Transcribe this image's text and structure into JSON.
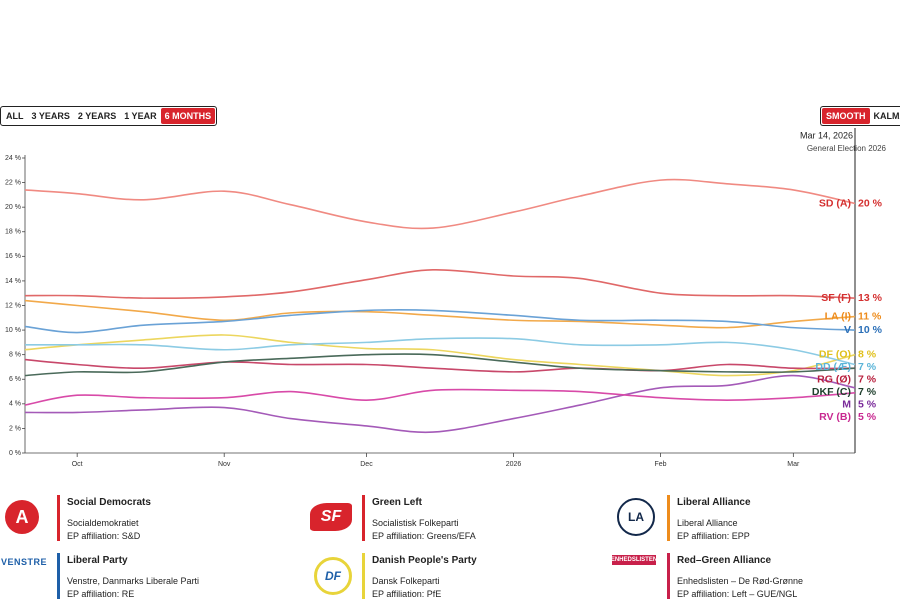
{
  "chart_data": {
    "type": "line",
    "range_buttons": [
      "ALL",
      "3 YEARS",
      "2 YEARS",
      "1 YEAR",
      "6 MONTHS"
    ],
    "active_range": 4,
    "mode_buttons": [
      "SMOOTH",
      "KALMA"
    ],
    "active_mode": 0,
    "marker_date": "Mar 14, 2026",
    "marker_label": "General Election 2026",
    "x": [
      "2025-09-20",
      "2025-10-01",
      "2025-10-15",
      "2025-11-01",
      "2025-11-15",
      "2025-12-01",
      "2025-12-15",
      "2026-01-01",
      "2026-01-15",
      "2026-02-01",
      "2026-02-15",
      "2026-03-01",
      "2026-03-14"
    ],
    "xlim": [
      "2025-09-20",
      "2026-03-14"
    ],
    "xticks": [
      {
        "value": "2025-10-01",
        "label": "Oct"
      },
      {
        "value": "2025-11-01",
        "label": "Nov"
      },
      {
        "value": "2025-12-01",
        "label": "Dec"
      },
      {
        "value": "2026-01-01",
        "label": "2026"
      },
      {
        "value": "2026-02-01",
        "label": "Feb"
      },
      {
        "value": "2026-03-01",
        "label": "Mar"
      }
    ],
    "ylim": [
      0,
      24
    ],
    "yticks": [
      {
        "value": 0,
        "label": "0 %"
      },
      {
        "value": 2,
        "label": "2 %"
      },
      {
        "value": 4,
        "label": "4 %"
      },
      {
        "value": 6,
        "label": "6 %"
      },
      {
        "value": 8,
        "label": "8 %"
      },
      {
        "value": 10,
        "label": "10 %"
      },
      {
        "value": 12,
        "label": "12 %"
      },
      {
        "value": 14,
        "label": "14 %"
      },
      {
        "value": 16,
        "label": "16 %"
      },
      {
        "value": 18,
        "label": "18 %"
      },
      {
        "value": 20,
        "label": "20 %"
      },
      {
        "value": 22,
        "label": "22 %"
      },
      {
        "value": 24,
        "label": "24 %"
      }
    ],
    "grid": false,
    "series": [
      {
        "name": "SD (A)",
        "color": "#f08a82",
        "label_color": "#d42f2f",
        "end_value_label": "20 %",
        "values": [
          21.4,
          21.1,
          20.6,
          21.3,
          20.2,
          18.8,
          18.3,
          19.6,
          20.9,
          22.2,
          21.9,
          21.4,
          20.3
        ]
      },
      {
        "name": "SF (F)",
        "color": "#e06868",
        "label_color": "#d42f2f",
        "end_value_label": "13 %",
        "values": [
          12.8,
          12.8,
          12.6,
          12.7,
          13.1,
          14.1,
          14.9,
          14.4,
          14.2,
          13.0,
          12.8,
          12.8,
          12.6
        ]
      },
      {
        "name": "LA (I)",
        "color": "#f2a94a",
        "label_color": "#ee8c1c",
        "end_value_label": "11 %",
        "values": [
          12.4,
          12.0,
          11.5,
          10.8,
          11.4,
          11.5,
          11.2,
          10.8,
          10.7,
          10.4,
          10.2,
          10.7,
          11.1
        ]
      },
      {
        "name": "V",
        "color": "#6aa2d6",
        "label_color": "#2a6fb8",
        "end_value_label": "10 %",
        "values": [
          10.3,
          9.8,
          10.4,
          10.7,
          11.2,
          11.6,
          11.6,
          11.2,
          10.8,
          10.8,
          10.7,
          10.2,
          10.0
        ]
      },
      {
        "name": "DF (O)",
        "color": "#ecd65e",
        "label_color": "#e0c01c",
        "end_value_label": "8 %",
        "values": [
          8.4,
          8.8,
          9.2,
          9.6,
          9.0,
          8.5,
          8.4,
          7.6,
          7.2,
          6.7,
          6.3,
          6.7,
          8.0
        ]
      },
      {
        "name": "RG (Ø)",
        "color": "#c8486a",
        "label_color": "#b8203e",
        "end_value_label": "7 %",
        "values": [
          7.6,
          7.2,
          6.9,
          7.4,
          7.2,
          7.2,
          6.9,
          6.6,
          6.9,
          6.7,
          7.2,
          6.9,
          6.9
        ]
      },
      {
        "name": "DD (Æ)",
        "color": "#8ccbe4",
        "label_color": "#5ab4d8",
        "end_value_label": "7 %",
        "values": [
          8.8,
          8.8,
          8.8,
          8.4,
          8.8,
          9.0,
          9.3,
          9.3,
          8.8,
          8.8,
          9.0,
          8.4,
          7.2
        ]
      },
      {
        "name": "DKF (C)",
        "color": "#4a6a5a",
        "label_color": "#20402e",
        "end_value_label": "7 %",
        "values": [
          6.3,
          6.6,
          6.6,
          7.4,
          7.7,
          8.0,
          8.0,
          7.4,
          6.9,
          6.7,
          6.6,
          6.6,
          6.9
        ]
      },
      {
        "name": "M",
        "color": "#a45ab8",
        "label_color": "#7a2a9a",
        "end_value_label": "5 %",
        "values": [
          3.3,
          3.3,
          3.5,
          3.7,
          2.8,
          2.2,
          1.7,
          2.8,
          3.9,
          5.3,
          5.5,
          6.3,
          5.3
        ]
      },
      {
        "name": "RV (B)",
        "color": "#d84aa8",
        "label_color": "#c82890",
        "end_value_label": "5 %",
        "values": [
          3.9,
          4.7,
          4.5,
          4.5,
          5.0,
          4.3,
          5.1,
          5.1,
          5.0,
          4.5,
          4.3,
          4.5,
          4.9
        ]
      }
    ],
    "parties": [
      {
        "logo": "A",
        "logo_color": "#d8242c",
        "name": "Social Democrats",
        "native": "Socialdemokratiet",
        "ep": "EP affiliation: S&D",
        "color": "#d8242c"
      },
      {
        "logo": "SF",
        "logo_color": "#d8242c",
        "name": "Green Left",
        "native": "Socialistisk Folkeparti",
        "ep": "EP affiliation: Greens/EFA",
        "color": "#d8242c"
      },
      {
        "logo": "LA",
        "logo_color": "#12284a",
        "name": "Liberal Alliance",
        "native": "Liberal Alliance",
        "ep": "EP affiliation: EPP",
        "color": "#ee8c1c"
      },
      {
        "logo": "VENSTRE",
        "logo_color": "#1e5fa8",
        "name": "Liberal Party",
        "native": "Venstre, Danmarks Liberale Parti",
        "ep": "EP affiliation: RE",
        "color": "#1e5fa8"
      },
      {
        "logo": "DF",
        "logo_color": "#1e5fa8",
        "name": "Danish People's Party",
        "native": "Dansk Folkeparti",
        "ep": "EP affiliation: PfE",
        "color": "#e8d43a"
      },
      {
        "logo": "ENHEDSLISTEN",
        "logo_color": "#c8204a",
        "name": "Red–Green Alliance",
        "native": "Enhedslisten – De Rød-Grønne",
        "ep": "EP affiliation: Left – GUE/NGL",
        "color": "#c8204a"
      }
    ]
  }
}
